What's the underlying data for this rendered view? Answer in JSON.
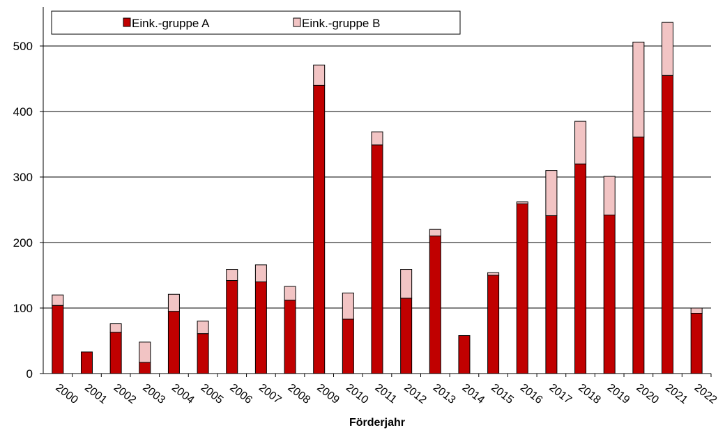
{
  "chart_data": {
    "type": "bar",
    "stacked": true,
    "title": "",
    "xlabel": "Förderjahr",
    "ylabel": "",
    "ylim": [
      0,
      560
    ],
    "yticks": [
      0,
      100,
      200,
      300,
      400,
      500
    ],
    "grid": true,
    "legend_position": "top",
    "categories": [
      "2000",
      "2001",
      "2002",
      "2003",
      "2004",
      "2005",
      "2006",
      "2007",
      "2008",
      "2009",
      "2010",
      "2011",
      "2012",
      "2013",
      "2014",
      "2015",
      "2016",
      "2017",
      "2018",
      "2019",
      "2020",
      "2021",
      "2022"
    ],
    "series": [
      {
        "name": "Eink.-gruppe A",
        "color": "#c00000",
        "values": [
          104,
          33,
          63,
          17,
          95,
          61,
          142,
          140,
          112,
          440,
          83,
          349,
          115,
          210,
          58,
          150,
          259,
          241,
          320,
          242,
          361,
          455,
          92
        ]
      },
      {
        "name": "Eink.-gruppe B",
        "color": "#f2c4c4",
        "values": [
          16,
          0,
          13,
          31,
          26,
          19,
          17,
          26,
          21,
          31,
          40,
          20,
          44,
          10,
          0,
          4,
          3,
          69,
          65,
          59,
          145,
          81,
          8
        ]
      }
    ]
  }
}
